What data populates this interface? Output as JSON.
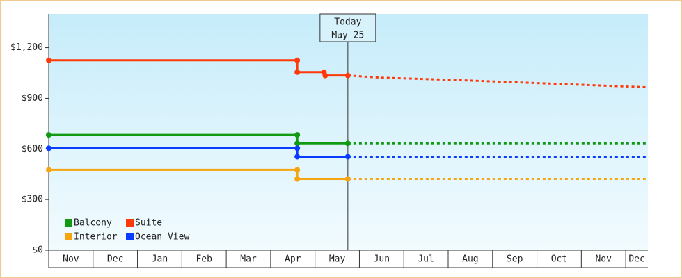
{
  "chart_data": {
    "type": "line",
    "xlim": [
      0,
      13.5
    ],
    "xticks": [
      {
        "value": 0,
        "label": "Nov"
      },
      {
        "value": 1,
        "label": "Dec"
      },
      {
        "value": 2,
        "label": "Jan"
      },
      {
        "value": 3,
        "label": "Feb"
      },
      {
        "value": 4,
        "label": "Mar"
      },
      {
        "value": 5,
        "label": "Apr"
      },
      {
        "value": 6,
        "label": "May"
      },
      {
        "value": 7,
        "label": "Jun"
      },
      {
        "value": 8,
        "label": "Jul"
      },
      {
        "value": 9,
        "label": "Aug"
      },
      {
        "value": 10,
        "label": "Sep"
      },
      {
        "value": 11,
        "label": "Oct"
      },
      {
        "value": 12,
        "label": "Nov"
      },
      {
        "value": 13,
        "label": "Dec"
      }
    ],
    "ylim": [
      0,
      1400
    ],
    "yticks": [
      {
        "value": 0,
        "label": "$0"
      },
      {
        "value": 300,
        "label": "$300"
      },
      {
        "value": 600,
        "label": "$600"
      },
      {
        "value": 900,
        "label": "$900"
      },
      {
        "value": 1200,
        "label": "$1,200"
      }
    ],
    "today": {
      "x": 6.74,
      "label": [
        "Today",
        "May 25"
      ]
    },
    "series": [
      {
        "name": "Balcony",
        "color": "#139a13",
        "x": [
          0,
          5.6,
          5.6,
          6.74
        ],
        "values": [
          683,
          683,
          633,
          633
        ],
        "forecast_x": [
          6.74,
          13.5
        ],
        "forecast_values": [
          633,
          633
        ]
      },
      {
        "name": "Suite",
        "color": "#ff3a0a",
        "x": [
          0,
          5.6,
          5.6,
          6.2,
          6.23,
          6.74
        ],
        "values": [
          1125,
          1125,
          1055,
          1055,
          1035,
          1035
        ],
        "forecast_x": [
          6.74,
          7.5,
          9,
          10.5,
          12,
          13.5
        ],
        "forecast_values": [
          1035,
          1022,
          1010,
          995,
          980,
          965
        ]
      },
      {
        "name": "Interior",
        "color": "#f5a50f",
        "x": [
          0,
          5.6,
          5.6,
          6.74
        ],
        "values": [
          476,
          476,
          422,
          422
        ],
        "forecast_x": [
          6.74,
          13.5
        ],
        "forecast_values": [
          422,
          422
        ]
      },
      {
        "name": "Ocean View",
        "color": "#0a3cff",
        "x": [
          0,
          5.6,
          5.6,
          6.74
        ],
        "values": [
          604,
          604,
          554,
          554
        ],
        "forecast_x": [
          6.74,
          13.5
        ],
        "forecast_values": [
          554,
          554
        ]
      }
    ]
  }
}
